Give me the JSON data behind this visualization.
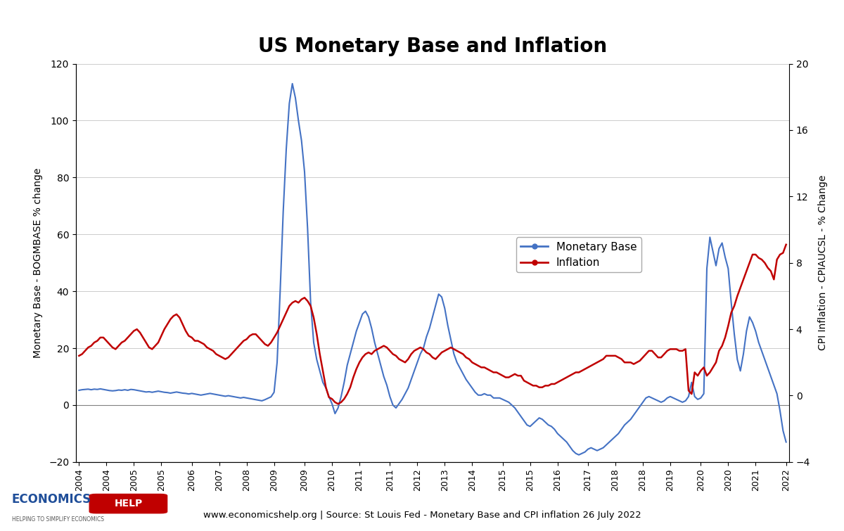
{
  "title": "US Monetary Base and Inflation",
  "ylabel_left": "Monetary Base - BOGMBASE % change",
  "ylabel_right": "CPI Inflation - CPIAUCSL - % Change",
  "ylim_left": [
    -20,
    120
  ],
  "ylim_right": [
    -4,
    20
  ],
  "yticks_left": [
    -20,
    0,
    20,
    40,
    60,
    80,
    100,
    120
  ],
  "yticks_right": [
    -4,
    0,
    4,
    8,
    12,
    16,
    20
  ],
  "source_text": "www.economicshelp.org | Source: St Louis Fed - Monetary Base and CPI inflation 26 July 2022",
  "legend_monetary": "Monetary Base",
  "legend_inflation": "Inflation",
  "line_color_monetary": "#4472C4",
  "line_color_inflation": "#C00000",
  "monetary_base": [
    5.2,
    5.4,
    5.5,
    5.6,
    5.4,
    5.6,
    5.5,
    5.7,
    5.5,
    5.3,
    5.1,
    5.0,
    5.1,
    5.3,
    5.2,
    5.4,
    5.2,
    5.5,
    5.4,
    5.2,
    5.0,
    4.8,
    4.6,
    4.7,
    4.5,
    4.7,
    4.9,
    4.7,
    4.5,
    4.4,
    4.2,
    4.4,
    4.6,
    4.4,
    4.2,
    4.1,
    3.9,
    4.1,
    3.9,
    3.7,
    3.5,
    3.7,
    3.9,
    4.1,
    3.9,
    3.7,
    3.5,
    3.3,
    3.1,
    3.3,
    3.1,
    2.9,
    2.7,
    2.5,
    2.7,
    2.5,
    2.3,
    2.1,
    1.9,
    1.7,
    1.5,
    1.9,
    2.4,
    2.9,
    4.5,
    15.0,
    40.0,
    68.0,
    90.0,
    106.0,
    113.0,
    108.0,
    100.0,
    93.0,
    82.0,
    62.0,
    36.0,
    22.0,
    16.0,
    12.0,
    8.0,
    6.0,
    3.0,
    0.5,
    -3.0,
    -1.0,
    3.0,
    8.0,
    14.0,
    18.0,
    22.0,
    26.0,
    29.0,
    32.0,
    33.0,
    31.0,
    27.0,
    22.0,
    18.0,
    14.0,
    10.0,
    7.0,
    3.0,
    0.0,
    -1.0,
    0.5,
    2.0,
    4.0,
    6.0,
    9.0,
    12.0,
    15.0,
    18.0,
    20.0,
    24.0,
    27.0,
    31.0,
    35.0,
    39.0,
    38.0,
    34.0,
    28.0,
    23.0,
    18.0,
    15.0,
    13.0,
    11.0,
    9.0,
    7.5,
    6.0,
    4.5,
    3.5,
    3.5,
    4.0,
    3.5,
    3.5,
    2.5,
    2.5,
    2.5,
    2.0,
    1.5,
    1.0,
    0.0,
    -1.0,
    -2.5,
    -4.0,
    -5.5,
    -7.0,
    -7.5,
    -6.5,
    -5.5,
    -4.5,
    -5.0,
    -6.0,
    -7.0,
    -7.5,
    -8.5,
    -10.0,
    -11.0,
    -12.0,
    -13.0,
    -14.5,
    -16.0,
    -17.0,
    -17.5,
    -17.0,
    -16.5,
    -15.5,
    -15.0,
    -15.5,
    -16.0,
    -15.5,
    -15.0,
    -14.0,
    -13.0,
    -12.0,
    -11.0,
    -10.0,
    -8.5,
    -7.0,
    -6.0,
    -5.0,
    -3.5,
    -2.0,
    -0.5,
    1.0,
    2.5,
    3.0,
    2.5,
    2.0,
    1.5,
    1.0,
    1.5,
    2.5,
    3.0,
    2.5,
    2.0,
    1.5,
    1.0,
    1.5,
    3.0,
    8.0,
    3.0,
    2.0,
    2.5,
    4.0,
    48.0,
    59.0,
    54.0,
    49.0,
    55.0,
    57.0,
    52.0,
    48.0,
    36.0,
    25.0,
    16.0,
    12.0,
    18.0,
    26.0,
    31.0,
    29.0,
    26.0,
    22.0,
    19.0,
    16.0,
    13.0,
    10.0,
    7.0,
    4.0,
    -2.0,
    -9.0,
    -13.0
  ],
  "inflation": [
    2.4,
    2.5,
    2.7,
    2.9,
    3.0,
    3.2,
    3.3,
    3.5,
    3.5,
    3.3,
    3.1,
    2.9,
    2.8,
    3.0,
    3.2,
    3.3,
    3.5,
    3.7,
    3.9,
    4.0,
    3.8,
    3.5,
    3.2,
    2.9,
    2.8,
    3.0,
    3.2,
    3.6,
    4.0,
    4.3,
    4.6,
    4.8,
    4.9,
    4.7,
    4.3,
    3.9,
    3.6,
    3.5,
    3.3,
    3.3,
    3.2,
    3.1,
    2.9,
    2.8,
    2.7,
    2.5,
    2.4,
    2.3,
    2.2,
    2.3,
    2.5,
    2.7,
    2.9,
    3.1,
    3.3,
    3.4,
    3.6,
    3.7,
    3.7,
    3.5,
    3.3,
    3.1,
    3.0,
    3.2,
    3.5,
    3.8,
    4.2,
    4.6,
    5.0,
    5.4,
    5.6,
    5.7,
    5.6,
    5.8,
    5.9,
    5.7,
    5.4,
    4.7,
    3.7,
    2.5,
    1.5,
    0.5,
    -0.1,
    -0.2,
    -0.4,
    -0.5,
    -0.4,
    -0.2,
    0.1,
    0.5,
    1.1,
    1.6,
    2.0,
    2.3,
    2.5,
    2.6,
    2.5,
    2.7,
    2.8,
    2.9,
    3.0,
    2.9,
    2.7,
    2.5,
    2.4,
    2.2,
    2.1,
    2.0,
    2.2,
    2.5,
    2.7,
    2.8,
    2.9,
    2.8,
    2.6,
    2.5,
    2.3,
    2.2,
    2.4,
    2.6,
    2.7,
    2.8,
    2.9,
    2.8,
    2.7,
    2.6,
    2.5,
    2.3,
    2.2,
    2.0,
    1.9,
    1.8,
    1.7,
    1.7,
    1.6,
    1.5,
    1.4,
    1.4,
    1.3,
    1.2,
    1.1,
    1.1,
    1.2,
    1.3,
    1.2,
    1.2,
    0.9,
    0.8,
    0.7,
    0.6,
    0.6,
    0.5,
    0.5,
    0.6,
    0.6,
    0.7,
    0.7,
    0.8,
    0.9,
    1.0,
    1.1,
    1.2,
    1.3,
    1.4,
    1.4,
    1.5,
    1.6,
    1.7,
    1.8,
    1.9,
    2.0,
    2.1,
    2.2,
    2.4,
    2.4,
    2.4,
    2.4,
    2.3,
    2.2,
    2.0,
    2.0,
    2.0,
    1.9,
    2.0,
    2.1,
    2.3,
    2.5,
    2.7,
    2.7,
    2.5,
    2.3,
    2.3,
    2.5,
    2.7,
    2.8,
    2.8,
    2.8,
    2.7,
    2.7,
    2.8,
    0.3,
    0.1,
    1.4,
    1.2,
    1.5,
    1.7,
    1.2,
    1.4,
    1.7,
    2.0,
    2.7,
    3.0,
    3.5,
    4.2,
    5.0,
    5.4,
    6.0,
    6.5,
    7.0,
    7.5,
    8.0,
    8.5,
    8.5,
    8.3,
    8.2,
    8.0,
    7.7,
    7.5,
    7.0,
    8.2,
    8.5,
    8.6,
    9.1
  ],
  "x_tick_labels": [
    "2004",
    "2004",
    "2005",
    "2005",
    "2006",
    "2007",
    "2008",
    "2009",
    "2009",
    "2010",
    "2011",
    "2011",
    "2012",
    "2013",
    "2014",
    "2015",
    "2015",
    "2016",
    "2017",
    "2018",
    "2018",
    "2019",
    "2020",
    "2020",
    "2021",
    "2022"
  ]
}
